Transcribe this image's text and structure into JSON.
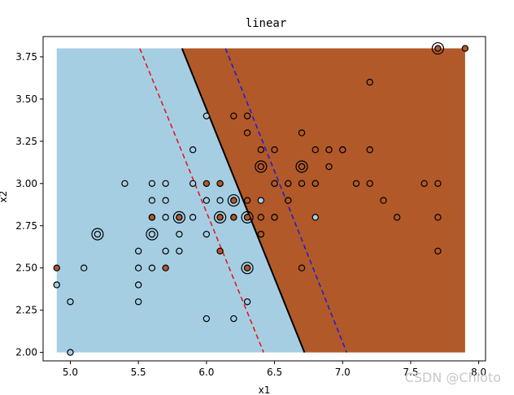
{
  "chart_data": {
    "type": "scatter",
    "title": "linear",
    "xlabel": "x1",
    "ylabel": "x2",
    "xlim": [
      4.8,
      8.05
    ],
    "ylim": [
      1.95,
      3.87
    ],
    "xticks": [
      "5.0",
      "5.5",
      "6.0",
      "6.5",
      "7.0",
      "7.5",
      "8.0"
    ],
    "xtick_values": [
      5.0,
      5.5,
      6.0,
      6.5,
      7.0,
      7.5,
      8.0
    ],
    "yticks": [
      "2.00",
      "2.25",
      "2.50",
      "2.75",
      "3.00",
      "3.25",
      "3.50",
      "3.75"
    ],
    "ytick_values": [
      2.0,
      2.25,
      2.5,
      2.75,
      3.0,
      3.25,
      3.5,
      3.75
    ],
    "grid": false,
    "region": {
      "xmin": 4.9,
      "xmax": 7.9,
      "ymin": 2.0,
      "ymax": 3.8
    },
    "class_colors": {
      "class_0": "#a6cee3",
      "class_1": "#b15928"
    },
    "decision_boundary": {
      "x_at_ymax": 5.82,
      "x_at_ymin": 6.72,
      "color": "#000000"
    },
    "margins": [
      {
        "color": "#e41a1c",
        "x_at_ymax": 5.51,
        "x_at_ymin": 6.42
      },
      {
        "color": "#1f1fd6",
        "x_at_ymax": 6.14,
        "x_at_ymin": 7.03
      }
    ],
    "points_class_0": [
      [
        4.9,
        2.4
      ],
      [
        5.0,
        2.3
      ],
      [
        5.0,
        2.0
      ],
      [
        5.1,
        2.5
      ],
      [
        5.2,
        2.7
      ],
      [
        5.4,
        3.0
      ],
      [
        5.5,
        2.6
      ],
      [
        5.5,
        2.5
      ],
      [
        5.5,
        2.4
      ],
      [
        5.5,
        2.3
      ],
      [
        5.6,
        3.0
      ],
      [
        5.6,
        2.9
      ],
      [
        5.6,
        2.7
      ],
      [
        5.6,
        2.5
      ],
      [
        5.7,
        3.0
      ],
      [
        5.7,
        2.9
      ],
      [
        5.7,
        2.8
      ],
      [
        5.7,
        2.6
      ],
      [
        5.8,
        2.7
      ],
      [
        5.8,
        2.6
      ],
      [
        5.9,
        3.2
      ],
      [
        5.9,
        3.0
      ],
      [
        6.0,
        3.4
      ],
      [
        6.0,
        2.9
      ],
      [
        6.0,
        2.7
      ],
      [
        6.0,
        2.2
      ],
      [
        6.1,
        3.0
      ],
      [
        6.1,
        2.9
      ],
      [
        6.1,
        2.8
      ],
      [
        6.2,
        2.9
      ],
      [
        6.2,
        2.2
      ],
      [
        6.3,
        2.5
      ],
      [
        6.3,
        2.3
      ],
      [
        6.4,
        2.9
      ],
      [
        6.6,
        3.0
      ],
      [
        6.6,
        2.9
      ],
      [
        6.5,
        2.8
      ],
      [
        6.7,
        3.0
      ],
      [
        6.7,
        3.1
      ],
      [
        6.8,
        2.8
      ],
      [
        7.0,
        3.2
      ],
      [
        6.4,
        2.7
      ],
      [
        5.8,
        2.8
      ],
      [
        6.3,
        2.8
      ],
      [
        5.6,
        2.8
      ],
      [
        5.9,
        2.8
      ],
      [
        6.2,
        2.8
      ]
    ],
    "points_class_1": [
      [
        4.9,
        2.5
      ],
      [
        5.6,
        2.8
      ],
      [
        5.7,
        2.5
      ],
      [
        5.8,
        2.8
      ],
      [
        6.0,
        3.0
      ],
      [
        6.1,
        3.0
      ],
      [
        6.1,
        2.8
      ],
      [
        6.2,
        3.4
      ],
      [
        6.2,
        2.8
      ],
      [
        6.3,
        3.4
      ],
      [
        6.3,
        3.3
      ],
      [
        6.3,
        2.9
      ],
      [
        6.3,
        2.8
      ],
      [
        6.3,
        2.5
      ],
      [
        6.4,
        3.2
      ],
      [
        6.4,
        3.1
      ],
      [
        6.4,
        2.8
      ],
      [
        6.4,
        2.7
      ],
      [
        6.5,
        3.2
      ],
      [
        6.5,
        3.0
      ],
      [
        6.7,
        3.3
      ],
      [
        6.7,
        3.1
      ],
      [
        6.7,
        3.0
      ],
      [
        6.7,
        2.5
      ],
      [
        6.8,
        3.2
      ],
      [
        6.8,
        3.0
      ],
      [
        6.9,
        3.2
      ],
      [
        6.9,
        3.1
      ],
      [
        7.1,
        3.0
      ],
      [
        7.2,
        3.6
      ],
      [
        7.2,
        3.2
      ],
      [
        7.2,
        3.0
      ],
      [
        7.3,
        2.9
      ],
      [
        7.4,
        2.8
      ],
      [
        7.6,
        3.0
      ],
      [
        7.7,
        3.8
      ],
      [
        7.7,
        3.0
      ],
      [
        7.7,
        2.8
      ],
      [
        7.7,
        2.6
      ],
      [
        7.9,
        3.8
      ],
      [
        6.5,
        2.8
      ],
      [
        6.6,
        3.0
      ],
      [
        6.2,
        2.9
      ],
      [
        6.5,
        3.0
      ],
      [
        6.6,
        2.9
      ],
      [
        6.1,
        2.6
      ],
      [
        6.8,
        3.0
      ],
      [
        7.0,
        3.2
      ]
    ],
    "support_vectors": [
      [
        5.2,
        2.7
      ],
      [
        5.6,
        2.7
      ],
      [
        5.8,
        2.8
      ],
      [
        6.1,
        2.8
      ],
      [
        6.2,
        2.9
      ],
      [
        6.3,
        2.8
      ],
      [
        6.3,
        2.5
      ],
      [
        6.4,
        3.1
      ],
      [
        6.7,
        3.1
      ],
      [
        7.7,
        3.8
      ]
    ]
  },
  "watermark": "CSDN @Chloto"
}
